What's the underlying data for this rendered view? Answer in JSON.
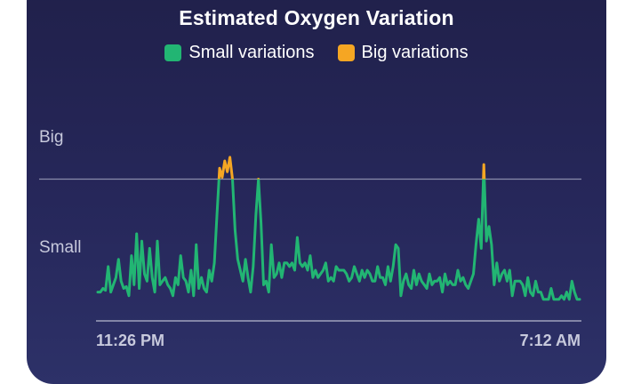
{
  "chart_data": {
    "type": "line",
    "title": "Estimated Oxygen Variation",
    "legend": [
      {
        "label": "Small variations",
        "color": "#22b573"
      },
      {
        "label": "Big variations",
        "color": "#f5a623"
      }
    ],
    "legend_position": "top-center",
    "y_labels": {
      "big": "Big",
      "small": "Small"
    },
    "x_tick_labels": {
      "start": "11:26 PM",
      "end": "7:12 AM"
    },
    "ylim": [
      0,
      100
    ],
    "threshold": 70,
    "grid": false,
    "series": [
      {
        "values": [
          8,
          8,
          10,
          9,
          22,
          8,
          12,
          16,
          26,
          14,
          10,
          11,
          6,
          28,
          12,
          40,
          10,
          36,
          18,
          14,
          32,
          16,
          8,
          36,
          12,
          14,
          16,
          12,
          10,
          6,
          16,
          12,
          28,
          16,
          14,
          8,
          20,
          6,
          34,
          10,
          16,
          10,
          8,
          20,
          14,
          24,
          50,
          76,
          71,
          80,
          74,
          82,
          70,
          42,
          26,
          20,
          14,
          26,
          16,
          8,
          22,
          50,
          70,
          46,
          12,
          14,
          8,
          34,
          16,
          18,
          24,
          16,
          24,
          24,
          22,
          24,
          20,
          38,
          24,
          22,
          24,
          20,
          28,
          16,
          20,
          16,
          18,
          20,
          24,
          14,
          16,
          14,
          22,
          20,
          20,
          20,
          18,
          14,
          16,
          22,
          18,
          14,
          20,
          16,
          20,
          18,
          14,
          14,
          22,
          16,
          16,
          12,
          22,
          14,
          22,
          34,
          32,
          6,
          14,
          18,
          12,
          10,
          20,
          12,
          18,
          14,
          12,
          10,
          18,
          12,
          14,
          14,
          16,
          8,
          18,
          12,
          14,
          12,
          12,
          20,
          14,
          16,
          12,
          10,
          14,
          18,
          34,
          48,
          32,
          78,
          36,
          44,
          34,
          12,
          24,
          14,
          18,
          20,
          14,
          20,
          6,
          14,
          14,
          14,
          12,
          6,
          16,
          8,
          6,
          14,
          8,
          8,
          4,
          4,
          4,
          10,
          4,
          4,
          4,
          6,
          4,
          8,
          4,
          14,
          8,
          4,
          4
        ]
      }
    ]
  }
}
